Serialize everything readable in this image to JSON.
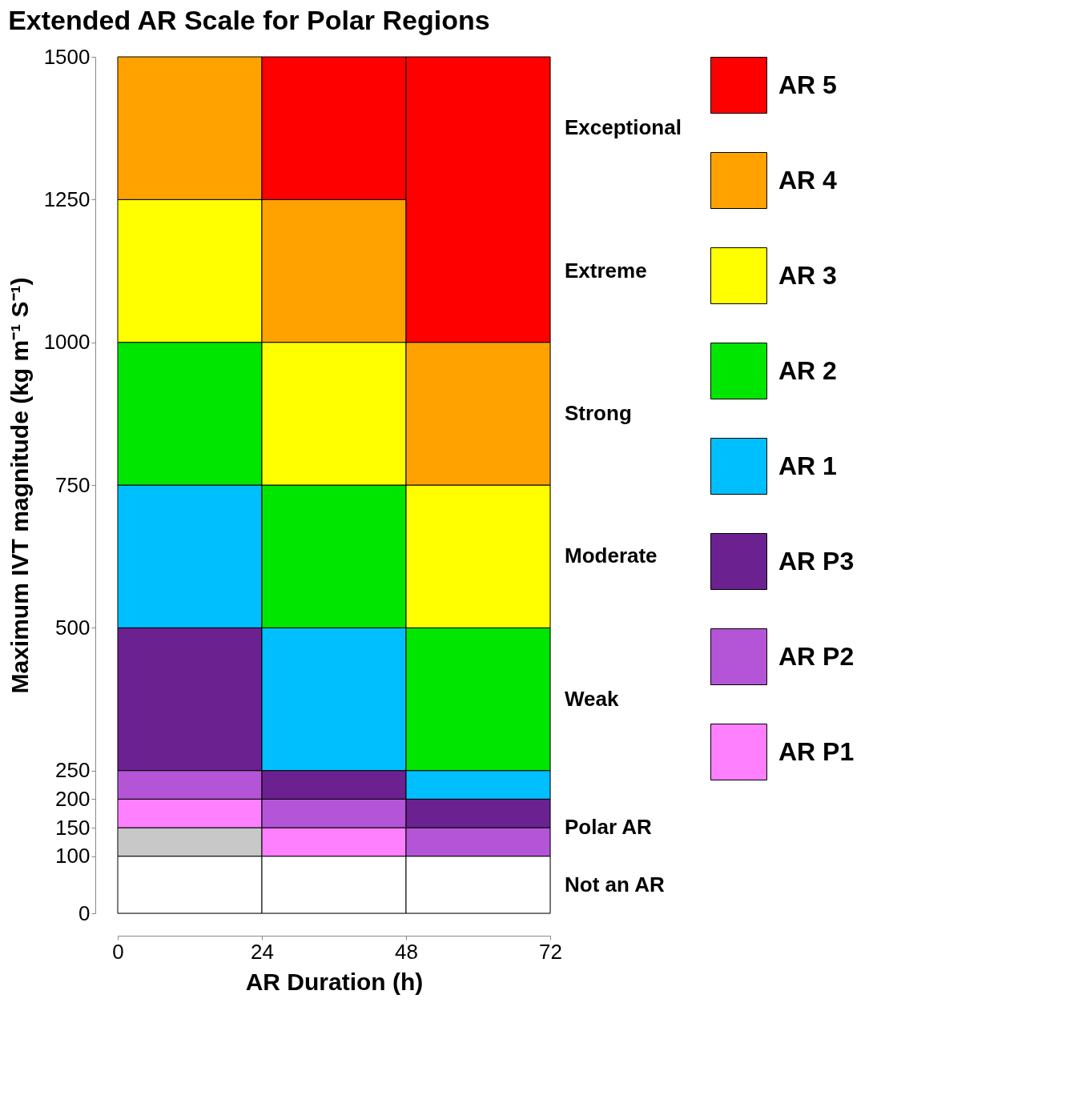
{
  "chart_data": {
    "type": "bar",
    "stacked": true,
    "title": "Extended AR Scale for Polar Regions",
    "xlabel": "AR Duration (h)",
    "ylabel": "Maximum IVT magnitude (kg m⁻¹ S⁻¹)",
    "x": [
      12,
      36,
      60
    ],
    "xlim": [
      0,
      72
    ],
    "xticks": [
      0,
      24,
      48,
      72
    ],
    "ylim": [
      0,
      1500
    ],
    "yticks": [
      0,
      100,
      150,
      200,
      250,
      500,
      750,
      1000,
      1250,
      1500
    ],
    "annotations": [
      "Exceptional",
      "Extreme",
      "Strong",
      "Moderate",
      "Weak",
      "Polar AR",
      "Not an AR"
    ],
    "series": [
      {
        "color": "#ffffff",
        "values": [
          100,
          100,
          100
        ]
      },
      {
        "color": "#c8c8c8",
        "values": [
          50,
          0,
          0
        ]
      },
      {
        "name": "AR P1",
        "color": "#ff80ff",
        "values": [
          50,
          50,
          0
        ]
      },
      {
        "name": "AR P2",
        "color": "#b455d8",
        "values": [
          50,
          50,
          50
        ]
      },
      {
        "name": "AR P3",
        "color": "#6b2290",
        "values": [
          250,
          50,
          50
        ]
      },
      {
        "name": "AR 1",
        "color": "#00bfff",
        "values": [
          250,
          250,
          50
        ]
      },
      {
        "name": "AR 2",
        "color": "#00e600",
        "values": [
          250,
          250,
          250
        ]
      },
      {
        "name": "AR 3",
        "color": "#ffff00",
        "values": [
          250,
          250,
          250
        ]
      },
      {
        "name": "AR 4",
        "color": "#ffa200",
        "values": [
          250,
          250,
          250
        ]
      },
      {
        "name": "AR 5",
        "color": "#ff0000",
        "values": [
          0,
          250,
          500
        ]
      }
    ],
    "legend": "right",
    "grid": false
  }
}
